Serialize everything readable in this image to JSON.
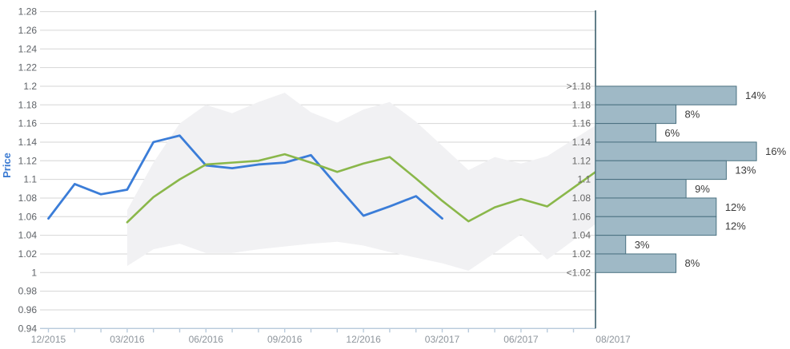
{
  "colors": {
    "history_line": "#3b7dd8",
    "forecast_line": "#8ab74a",
    "confidence_band": "#f1f1f3",
    "grid_line": "#d6d6d6",
    "x_axis_line": "#b9cbdc",
    "y_tick_label": "#5f6368",
    "x_tick_label": "#8e959c",
    "bin_boundary_label": "#666666",
    "percent_label": "#3b3b3b",
    "histogram_bar_fill": "#9fb9c6",
    "histogram_bar_border": "#4a7181",
    "histogram_axis": "#3c5f6d",
    "price_title": "#3a7ad2"
  },
  "chart_data": [
    {
      "type": "line",
      "title": "",
      "xlabel": "",
      "ylabel": "Price",
      "ylim": [
        0.94,
        1.28
      ],
      "ytick_step": 0.02,
      "grid": true,
      "legend_position": "none",
      "ytick_labels": [
        "1.28",
        "1.26",
        "1.24",
        "1.22",
        "1.2",
        "1.18",
        "1.16",
        "1.14",
        "1.12",
        "1.1",
        "1.08",
        "1.06",
        "1.04",
        "1.02",
        "1",
        "0.98",
        "0.96",
        "0.94"
      ],
      "x_dates": [
        "12/2015",
        "01/2016",
        "02/2016",
        "03/2016",
        "04/2016",
        "05/2016",
        "06/2016",
        "07/2016",
        "08/2016",
        "09/2016",
        "10/2016",
        "11/2016",
        "12/2016",
        "01/2017",
        "02/2017",
        "03/2017",
        "04/2017",
        "05/2017",
        "06/2017",
        "07/2017",
        "08/2017"
      ],
      "x_major_label_indices": [
        0,
        3,
        6,
        9,
        12,
        15,
        18
      ],
      "x_end_label": "08/2017",
      "series": [
        {
          "name": "price-history",
          "color": "#3b7dd8",
          "start_index": 0,
          "values": [
            1.058,
            1.095,
            1.084,
            1.089,
            1.14,
            1.147,
            1.115,
            1.112,
            1.116,
            1.118,
            1.126,
            1.093,
            1.061,
            1.071,
            1.082,
            1.058
          ]
        },
        {
          "name": "forecast",
          "color": "#8ab74a",
          "start_index": 3,
          "values": [
            1.054,
            1.081,
            1.1,
            1.116,
            1.118,
            1.12,
            1.127,
            1.118,
            1.108,
            1.117,
            1.124,
            1.101,
            1.077,
            1.055,
            1.07,
            1.079,
            1.071,
            1.108
          ]
        }
      ],
      "band": {
        "name": "confidence-band",
        "color": "#f1f1f3",
        "start_index": 3,
        "top": [
          1.067,
          1.118,
          1.16,
          1.18,
          1.171,
          1.183,
          1.193,
          1.172,
          1.161,
          1.175,
          1.183,
          1.162,
          1.136,
          1.11,
          1.124,
          1.117,
          1.125,
          1.158
        ],
        "bottom": [
          1.007,
          1.025,
          1.031,
          1.021,
          1.021,
          1.025,
          1.028,
          1.031,
          1.033,
          1.029,
          1.022,
          1.016,
          1.01,
          1.002,
          1.021,
          1.041,
          1.014,
          1.052
        ]
      }
    },
    {
      "type": "bar",
      "orientation": "horizontal",
      "title": "",
      "bin_boundary_labels": [
        ">1.18",
        "1.18",
        "1.16",
        "1.14",
        "1.12",
        "1.1",
        "1.08",
        "1.06",
        "1.04",
        "1.02",
        "<1.02"
      ],
      "values": [
        14,
        8,
        6,
        16,
        13,
        9,
        12,
        12,
        3,
        8
      ],
      "labels": [
        "14%",
        "8%",
        "6%",
        "16%",
        "13%",
        "9%",
        "12%",
        "12%",
        "3%",
        "8%"
      ],
      "value_axis_max_pct": 16
    }
  ]
}
